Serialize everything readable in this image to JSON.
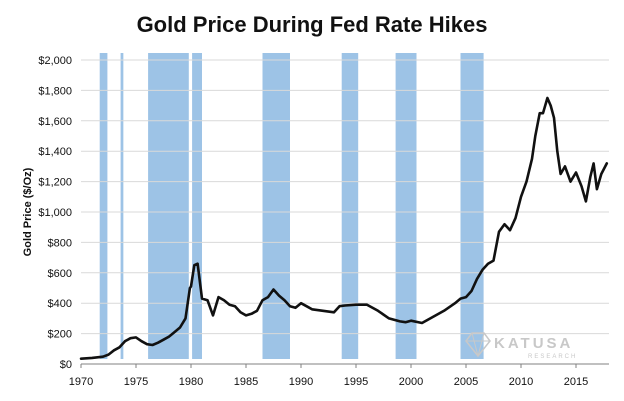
{
  "chart_data": {
    "type": "line",
    "title": "Gold Price During Fed Rate Hikes",
    "ylabel": "Gold Price ($/Oz)",
    "xlim": [
      1970,
      2018
    ],
    "ylim": [
      0,
      2000
    ],
    "x_ticks": [
      1970,
      1975,
      1980,
      1985,
      1990,
      1995,
      2000,
      2005,
      2010,
      2015
    ],
    "y_ticks": [
      "$0",
      "$200",
      "$400",
      "$600",
      "$800",
      "$1,000",
      "$1,200",
      "$1,400",
      "$1,600",
      "$1,800",
      "$2,000"
    ],
    "y_tick_values": [
      0,
      200,
      400,
      600,
      800,
      1000,
      1200,
      1400,
      1600,
      1800,
      2000
    ],
    "grid": true,
    "line_color": "#111111",
    "band_color": "#9dc3e6",
    "rate_hike_periods": [
      [
        1971.7,
        1972.4
      ],
      [
        1973.6,
        1973.85
      ],
      [
        1976.1,
        1979.8
      ],
      [
        1980.1,
        1981.0
      ],
      [
        1986.5,
        1989.0
      ],
      [
        1993.7,
        1995.2
      ],
      [
        1998.6,
        2000.5
      ],
      [
        2004.5,
        2006.6
      ]
    ],
    "series": [
      {
        "x": [
          1970,
          1971,
          1972,
          1972.5,
          1973,
          1973.5,
          1974,
          1974.5,
          1975,
          1975.5,
          1976,
          1976.5,
          1977,
          1977.5,
          1978,
          1978.5,
          1979,
          1979.5,
          1979.9,
          1980,
          1980.3,
          1980.6,
          1981,
          1981.5,
          1982,
          1982.5,
          1983,
          1983.5,
          1984,
          1984.5,
          1985,
          1985.5,
          1986,
          1986.5,
          1987,
          1987.5,
          1988,
          1988.5,
          1989,
          1989.5,
          1990,
          1990.5,
          1991,
          1992,
          1993,
          1993.5,
          1994,
          1995,
          1996,
          1997,
          1998,
          1999,
          1999.5,
          2000,
          2001,
          2002,
          2003,
          2004,
          2004.5,
          2005,
          2005.5,
          2006,
          2006.5,
          2007,
          2007.5,
          2008,
          2008.5,
          2009,
          2009.5,
          2010,
          2010.5,
          2011,
          2011.3,
          2011.7,
          2012,
          2012.4,
          2012.7,
          2013,
          2013.3,
          2013.6,
          2014,
          2014.5,
          2015,
          2015.5,
          2015.9,
          2016.3,
          2016.6,
          2016.9,
          2017.3,
          2017.8
        ],
        "values": [
          35,
          40,
          48,
          62,
          90,
          110,
          150,
          170,
          175,
          150,
          130,
          125,
          140,
          160,
          180,
          210,
          240,
          300,
          500,
          510,
          650,
          660,
          430,
          420,
          320,
          440,
          420,
          390,
          380,
          340,
          320,
          330,
          350,
          420,
          440,
          490,
          450,
          420,
          380,
          370,
          400,
          380,
          360,
          350,
          340,
          380,
          385,
          390,
          390,
          350,
          300,
          280,
          275,
          285,
          270,
          310,
          350,
          400,
          430,
          440,
          480,
          560,
          620,
          660,
          680,
          870,
          920,
          880,
          960,
          1100,
          1200,
          1350,
          1500,
          1650,
          1650,
          1750,
          1700,
          1620,
          1400,
          1250,
          1300,
          1200,
          1260,
          1170,
          1070,
          1230,
          1320,
          1150,
          1250,
          1320
        ]
      }
    ],
    "watermark": {
      "name": "KATUSA",
      "sub": "RESEARCH",
      "icon": "diamond-icon"
    }
  }
}
